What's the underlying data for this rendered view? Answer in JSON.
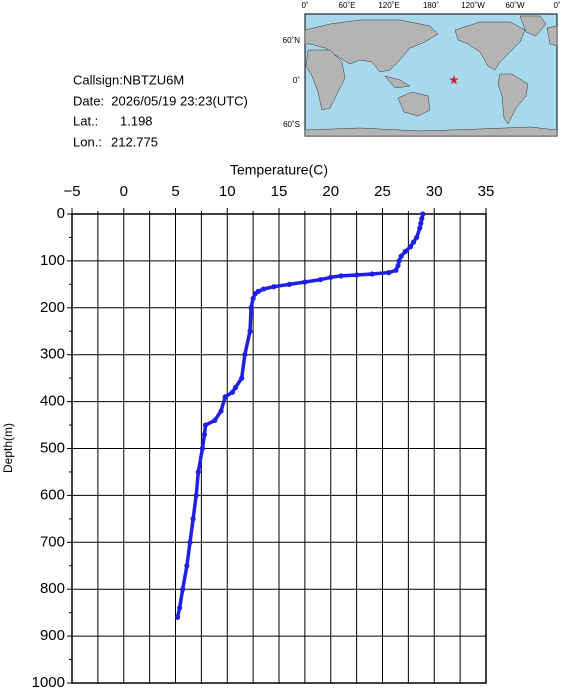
{
  "chart_data": {
    "type": "line",
    "x_label": "Temperature(C)",
    "y_label": "Depth(m)",
    "xlim": [
      -5,
      35
    ],
    "ylim": [
      0,
      1000
    ],
    "y_inverted": true,
    "xticks": [
      {
        "value": -5,
        "label": "−5"
      },
      0,
      5,
      10,
      15,
      20,
      25,
      30,
      35
    ],
    "x_minor_ticks": [
      -2.5,
      2.5,
      7.5,
      12.5,
      17.5,
      22.5,
      27.5,
      32.5
    ],
    "yticks": [
      0,
      100,
      200,
      300,
      400,
      500,
      600,
      700,
      800,
      900,
      1000
    ],
    "y_minor_ticks": [
      50,
      150,
      250,
      350,
      450,
      550,
      650,
      750,
      850,
      950
    ],
    "grid": true,
    "series": [
      {
        "color": "#1f1fe6",
        "x": [
          28.9,
          28.8,
          28.7,
          28.6,
          28.3,
          28.0,
          27.7,
          27.2,
          26.8,
          26.6,
          26.5,
          26.3,
          25.6,
          24.0,
          22.5,
          21.0,
          20.0,
          19.0,
          17.5,
          16.0,
          14.5,
          13.5,
          13.0,
          12.7,
          12.5,
          12.3,
          12.2,
          11.7,
          11.4,
          10.8,
          10.5,
          9.8,
          9.4,
          8.8,
          7.9,
          7.8,
          7.6,
          7.2,
          7.0,
          6.7,
          6.4,
          6.1,
          5.7,
          5.4,
          5.2
        ],
        "y": [
          0,
          10,
          20,
          30,
          50,
          60,
          70,
          80,
          90,
          100,
          110,
          120,
          125,
          128,
          130,
          132,
          135,
          140,
          145,
          150,
          155,
          160,
          165,
          170,
          180,
          200,
          250,
          300,
          350,
          370,
          380,
          390,
          420,
          440,
          450,
          470,
          500,
          550,
          600,
          650,
          700,
          750,
          800,
          840,
          860
        ]
      }
    ]
  },
  "info": {
    "callsign": "Callsign:NBTZU6M",
    "date": "Date:  2026/05/19 23:23(UTC)",
    "lat_label": "Lat.:",
    "lat": 1.198,
    "lon_label": "Lon.:",
    "lon": 212.775
  },
  "map": {
    "lon_labels": [
      "0˚",
      "60˚E",
      "120˚E",
      "180˚",
      "120˚W",
      "60˚W",
      "0˚"
    ],
    "lat_labels": [
      "60˚N",
      "0˚",
      "60˚S"
    ],
    "marker_color": "#e02020"
  }
}
